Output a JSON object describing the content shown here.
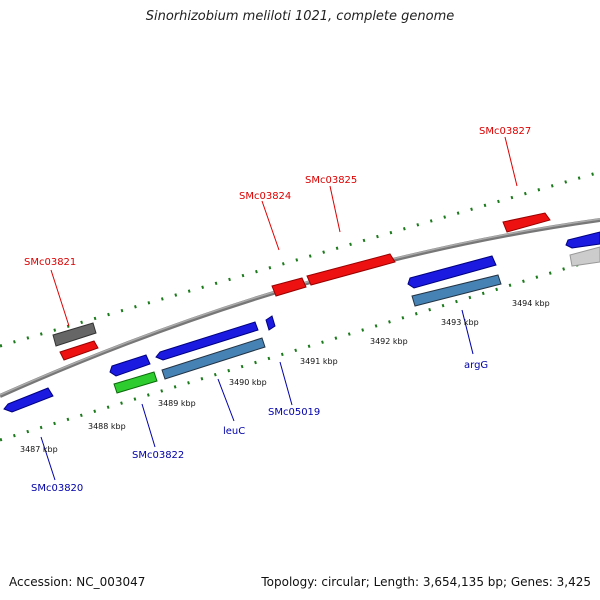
{
  "title": "Sinorhizobium meliloti 1021, complete genome",
  "footer": {
    "accession": "Accession: NC_003047",
    "summary": "Topology: circular; Length: 3,654,135 bp; Genes: 3,425"
  },
  "colors": {
    "forward_label": "#dd0000",
    "reverse_label": "#0000aa",
    "backbone": "#888888",
    "ruler_dots": "#1b7a1b"
  },
  "kbp_labels": [
    "3487 kbp",
    "3488 kbp",
    "3489 kbp",
    "3490 kbp",
    "3491 kbp",
    "3492 kbp",
    "3493 kbp",
    "3494 kbp"
  ],
  "gene_labels_forward": [
    "SMc03821",
    "SMc03824",
    "SMc03825",
    "SMc03827"
  ],
  "gene_labels_reverse": [
    "SMc03820",
    "SMc03822",
    "leuC",
    "SMc05019",
    "argG"
  ]
}
